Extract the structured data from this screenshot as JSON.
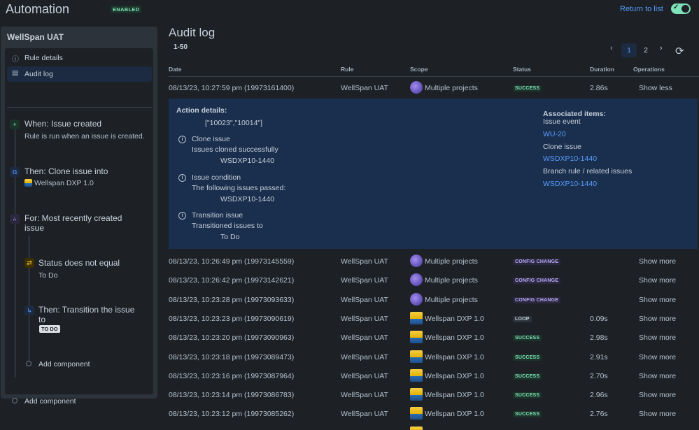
{
  "header": {
    "title": "Automation",
    "enabled_badge": "ENABLED",
    "return_link": "Return to list"
  },
  "sidebar": {
    "rule_name": "WellSpan UAT",
    "nav": [
      {
        "label": "Rule details"
      },
      {
        "label": "Audit log"
      }
    ],
    "components": {
      "trigger_title": "When: Issue created",
      "trigger_sub": "Rule is run when an issue is created.",
      "clone_title": "Then: Clone issue into",
      "clone_project": "Wellspan DXP 1.0",
      "branch_title": "For: Most recently created issue",
      "condition_title": "Status does not equal",
      "condition_value": "To Do",
      "transition_title": "Then: Transition the issue to",
      "transition_lozenge": "TO DO",
      "add_component_inner": "Add component",
      "add_component_outer": "Add component"
    }
  },
  "main": {
    "title": "Audit log",
    "range": "1-50",
    "pages": [
      "1",
      "2"
    ],
    "columns": {
      "date": "Date",
      "rule": "Rule",
      "scope": "Scope",
      "status": "Status",
      "duration": "Duration",
      "operations": "Operations"
    }
  },
  "expanded_row": {
    "date": "08/13/23, 10:27:59 pm (19973161400)",
    "rule": "WellSpan UAT",
    "scope": "Multiple projects",
    "status": "SUCCESS",
    "duration": "2.86s",
    "op": "Show less"
  },
  "details": {
    "action_header": "Action details:",
    "action_ids": "[\"10023\",\"10014\"]",
    "items": [
      {
        "title": "Clone issue",
        "desc": "Issues cloned successfully",
        "value": "WSDXP10-1440"
      },
      {
        "title": "Issue condition",
        "desc": "The following issues passed:",
        "value": "WSDXP10-1440"
      },
      {
        "title": "Transition issue",
        "desc": "Transitioned issues to",
        "value": "To Do"
      }
    ],
    "associated_header": "Associated items:",
    "associated": [
      {
        "label": "Issue event",
        "link": "WU-20"
      },
      {
        "label": "Clone issue",
        "link": "WSDXP10-1440"
      },
      {
        "label": "Branch rule / related issues",
        "link": "WSDXP10-1440"
      }
    ]
  },
  "rows": [
    {
      "date": "08/13/23, 10:26:49 pm (19973145559)",
      "rule": "WellSpan UAT",
      "scope": "Multiple projects",
      "status": "CONFIG CHANGE",
      "duration": "",
      "op": "Show more"
    },
    {
      "date": "08/13/23, 10:26:42 pm (19973142621)",
      "rule": "WellSpan UAT",
      "scope": "Multiple projects",
      "status": "CONFIG CHANGE",
      "duration": "",
      "op": "Show more"
    },
    {
      "date": "08/13/23, 10:23:28 pm (19973093633)",
      "rule": "WellSpan UAT",
      "scope": "Multiple projects",
      "status": "CONFIG CHANGE",
      "duration": "",
      "op": "Show more"
    },
    {
      "date": "08/13/23, 10:23:23 pm (19973090619)",
      "rule": "WellSpan UAT",
      "scope": "Wellspan DXP 1.0",
      "status": "LOOP",
      "duration": "0.09s",
      "op": "Show more"
    },
    {
      "date": "08/13/23, 10:23:20 pm (19973090963)",
      "rule": "WellSpan UAT",
      "scope": "Wellspan DXP 1.0",
      "status": "SUCCESS",
      "duration": "2.98s",
      "op": "Show more"
    },
    {
      "date": "08/13/23, 10:23:18 pm (19973089473)",
      "rule": "WellSpan UAT",
      "scope": "Wellspan DXP 1.0",
      "status": "SUCCESS",
      "duration": "2.91s",
      "op": "Show more"
    },
    {
      "date": "08/13/23, 10:23:16 pm (19973087964)",
      "rule": "WellSpan UAT",
      "scope": "Wellspan DXP 1.0",
      "status": "SUCCESS",
      "duration": "2.70s",
      "op": "Show more"
    },
    {
      "date": "08/13/23, 10:23:14 pm (19973086783)",
      "rule": "WellSpan UAT",
      "scope": "Wellspan DXP 1.0",
      "status": "SUCCESS",
      "duration": "2.96s",
      "op": "Show more"
    },
    {
      "date": "08/13/23, 10:23:12 pm (19973085262)",
      "rule": "WellSpan UAT",
      "scope": "Wellspan DXP 1.0",
      "status": "SUCCESS",
      "duration": "2.76s",
      "op": "Show more"
    }
  ]
}
